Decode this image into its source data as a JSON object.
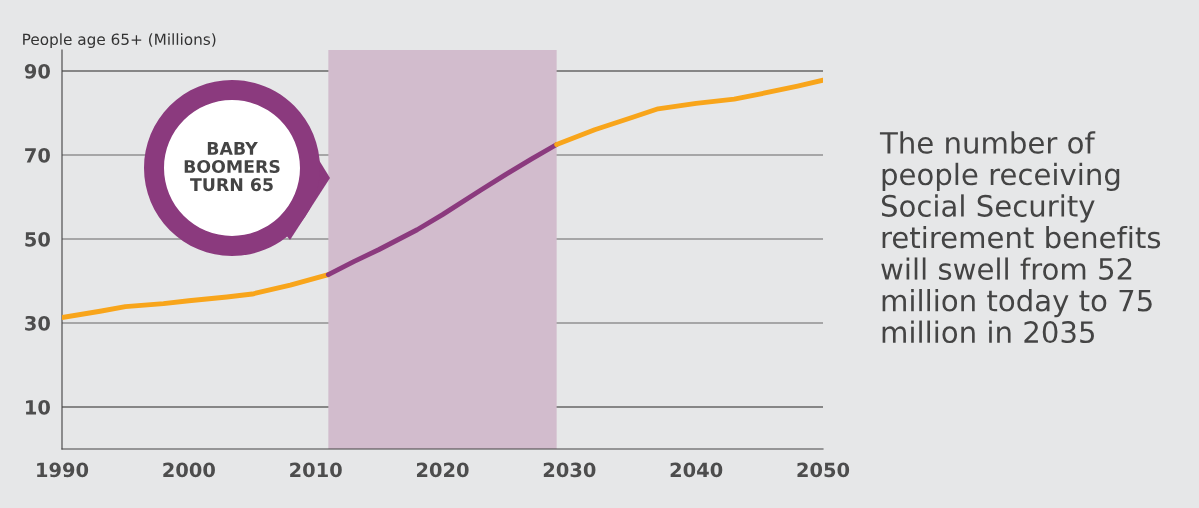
{
  "chart_data": {
    "type": "line",
    "ylabel": "People age 65+ (Millions)",
    "series": [
      {
        "color": "#f8a51b",
        "x": [
          1990,
          1993,
          1995,
          1998,
          2000,
          2003,
          2005,
          2008,
          2011
        ],
        "values": [
          31.3,
          32.8,
          33.9,
          34.6,
          35.3,
          36.2,
          36.9,
          39.0,
          41.5
        ]
      },
      {
        "color": "#8b3a7e",
        "x": [
          2011,
          2013,
          2015,
          2018,
          2020,
          2023,
          2025,
          2027,
          2029
        ],
        "values": [
          41.5,
          44.6,
          47.5,
          52.2,
          55.8,
          61.6,
          65.4,
          69.0,
          72.5
        ]
      },
      {
        "color": "#f8a51b",
        "x": [
          2029,
          2032,
          2035,
          2037,
          2040,
          2043,
          2045,
          2048,
          2050
        ],
        "values": [
          72.5,
          76.0,
          79.0,
          81.0,
          82.3,
          83.3,
          84.5,
          86.4,
          87.8
        ]
      }
    ],
    "bands": [
      {
        "axis": "x",
        "from": 2011,
        "to": 2029,
        "color": "#d2bccd"
      }
    ],
    "annotations": [
      "BABY\nBOOMERS\nTURN 65",
      "The number of people receiving Social Security retirement benefits will swell from 52 million today to 75 million in 2035"
    ],
    "xlim": [
      1990,
      2050
    ],
    "xticks": [
      1990,
      2000,
      2010,
      2020,
      2030,
      2040,
      2050
    ],
    "ylim": [
      0,
      95
    ],
    "yticks": [
      10,
      30,
      50,
      70,
      90
    ],
    "grid": "y",
    "legend": false,
    "marker": "none",
    "line_style": "solid"
  }
}
